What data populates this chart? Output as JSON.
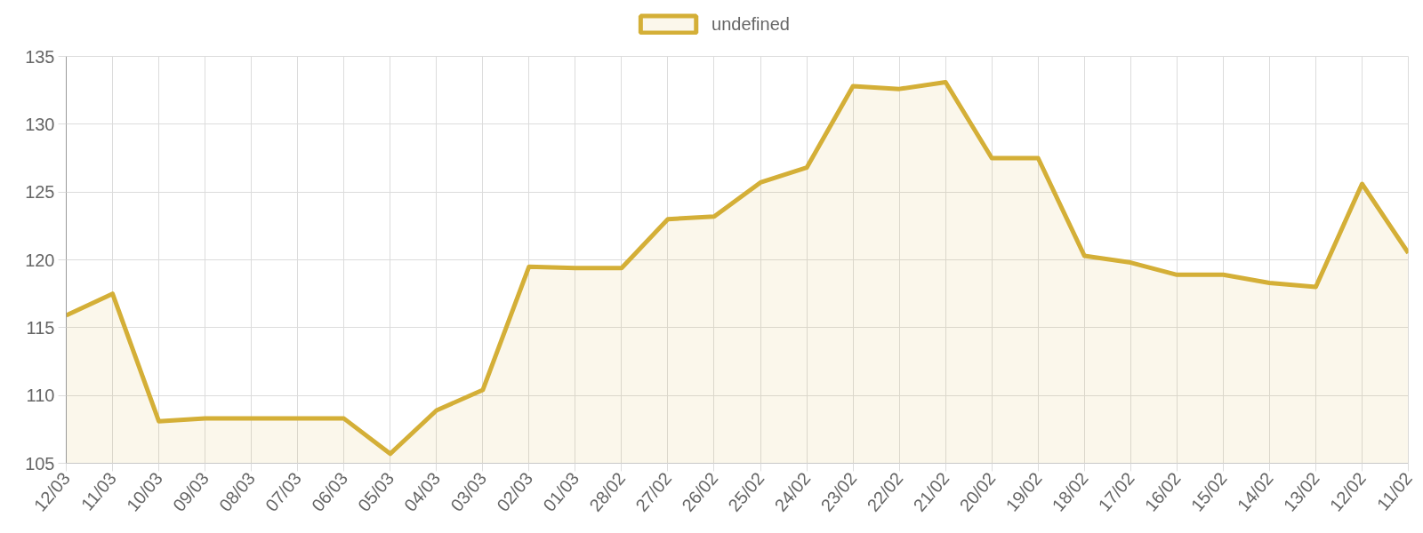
{
  "chart_data": {
    "type": "area",
    "categories": [
      "12/03",
      "11/03",
      "10/03",
      "09/03",
      "08/03",
      "07/03",
      "06/03",
      "05/03",
      "04/03",
      "03/03",
      "02/03",
      "01/03",
      "28/02",
      "27/02",
      "26/02",
      "25/02",
      "24/02",
      "23/02",
      "22/02",
      "21/02",
      "20/02",
      "19/02",
      "18/02",
      "17/02",
      "16/02",
      "15/02",
      "14/02",
      "13/02",
      "12/02",
      "11/02"
    ],
    "series": [
      {
        "name": "undefined",
        "color": "#d4af37",
        "values": [
          115.9,
          117.5,
          108.1,
          108.3,
          108.3,
          108.3,
          108.3,
          105.7,
          108.9,
          110.4,
          119.5,
          119.4,
          119.4,
          123.0,
          123.2,
          125.7,
          126.8,
          132.8,
          132.6,
          133.1,
          127.5,
          127.5,
          120.3,
          119.8,
          118.9,
          118.9,
          118.3,
          118.0,
          125.6,
          120.5
        ]
      }
    ],
    "ylim": [
      105,
      135
    ],
    "yticks": [
      105,
      110,
      115,
      120,
      125,
      130,
      135
    ],
    "grid": true,
    "legend": "top"
  }
}
